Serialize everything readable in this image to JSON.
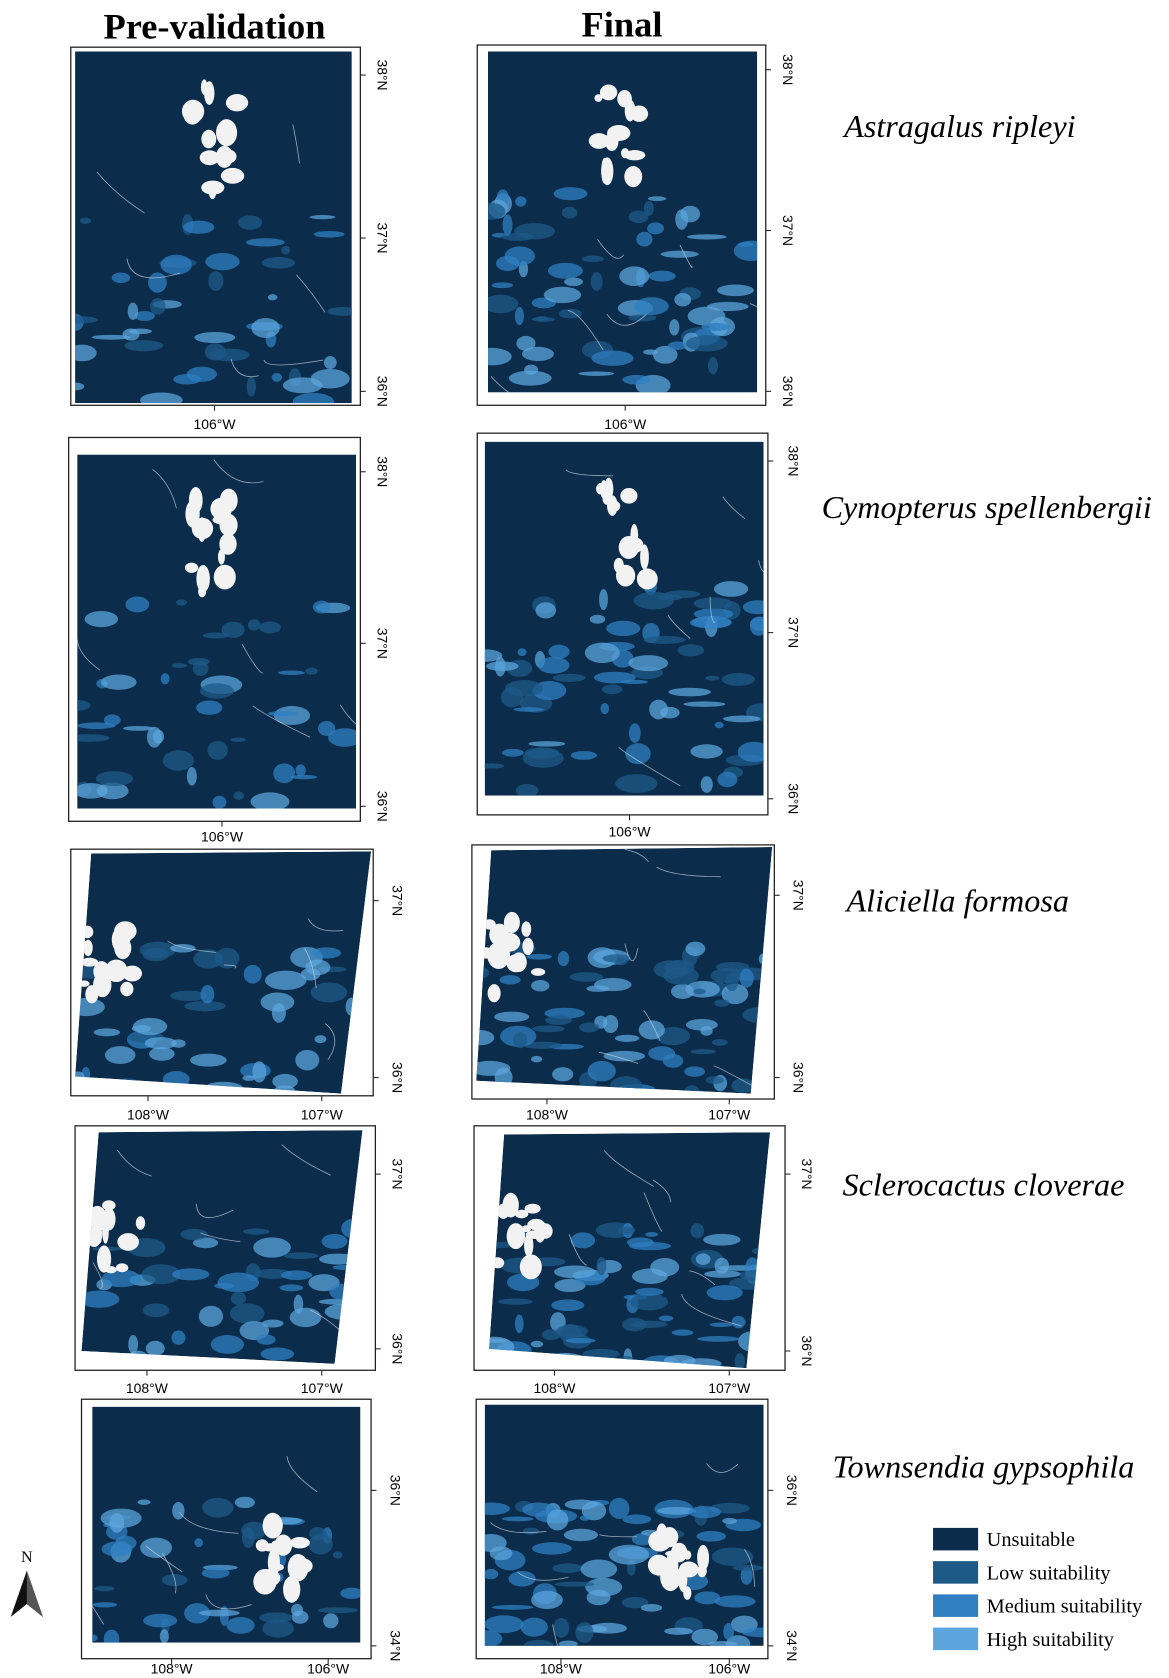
{
  "headers": [
    "Pre-validation",
    "Final"
  ],
  "rows": [
    {
      "species": "Astragalus ripleyi",
      "panels": [
        {
          "lat_labels": [
            "38°N",
            "37°N",
            "36°N"
          ],
          "lon_labels": [
            "106°W"
          ]
        },
        {
          "lat_labels": [
            "38°N",
            "37°N",
            "36°N"
          ],
          "lon_labels": [
            "106°W"
          ]
        }
      ]
    },
    {
      "species": "Cymopterus spellenbergii",
      "panels": [
        {
          "lat_labels": [
            "38°N",
            "37°N",
            "36°N"
          ],
          "lon_labels": [
            "106°W"
          ]
        },
        {
          "lat_labels": [
            "38°N",
            "37°N",
            "36°N"
          ],
          "lon_labels": [
            "106°W"
          ]
        }
      ]
    },
    {
      "species": "Aliciella formosa",
      "panels": [
        {
          "lat_labels": [
            "37°N",
            "36°N"
          ],
          "lon_labels": [
            "108°W",
            "107°W"
          ]
        },
        {
          "lat_labels": [
            "37°N",
            "36°N"
          ],
          "lon_labels": [
            "108°W",
            "107°W"
          ]
        }
      ]
    },
    {
      "species": "Sclerocactus cloverae",
      "panels": [
        {
          "lat_labels": [
            "37°N",
            "36°N"
          ],
          "lon_labels": [
            "108°W",
            "107°W"
          ]
        },
        {
          "lat_labels": [
            "37°N",
            "36°N"
          ],
          "lon_labels": [
            "108°W",
            "107°W"
          ]
        }
      ]
    },
    {
      "species": "Townsendia gypsophila",
      "panels": [
        {
          "lat_labels": [
            "36°N",
            "34°N"
          ],
          "lon_labels": [
            "108°W",
            "106°W"
          ]
        },
        {
          "lat_labels": [
            "36°N",
            "34°N"
          ],
          "lon_labels": [
            "108°W",
            "106°W"
          ]
        }
      ]
    }
  ],
  "legend": {
    "items": [
      {
        "label": "Unsuitable",
        "color": "#0b2c4a"
      },
      {
        "label": "Low suitability",
        "color": "#1d5a88"
      },
      {
        "label": "Medium suitability",
        "color": "#2f7fc1"
      },
      {
        "label": "High suitability",
        "color": "#5ba4dc"
      }
    ]
  },
  "north": "N"
}
